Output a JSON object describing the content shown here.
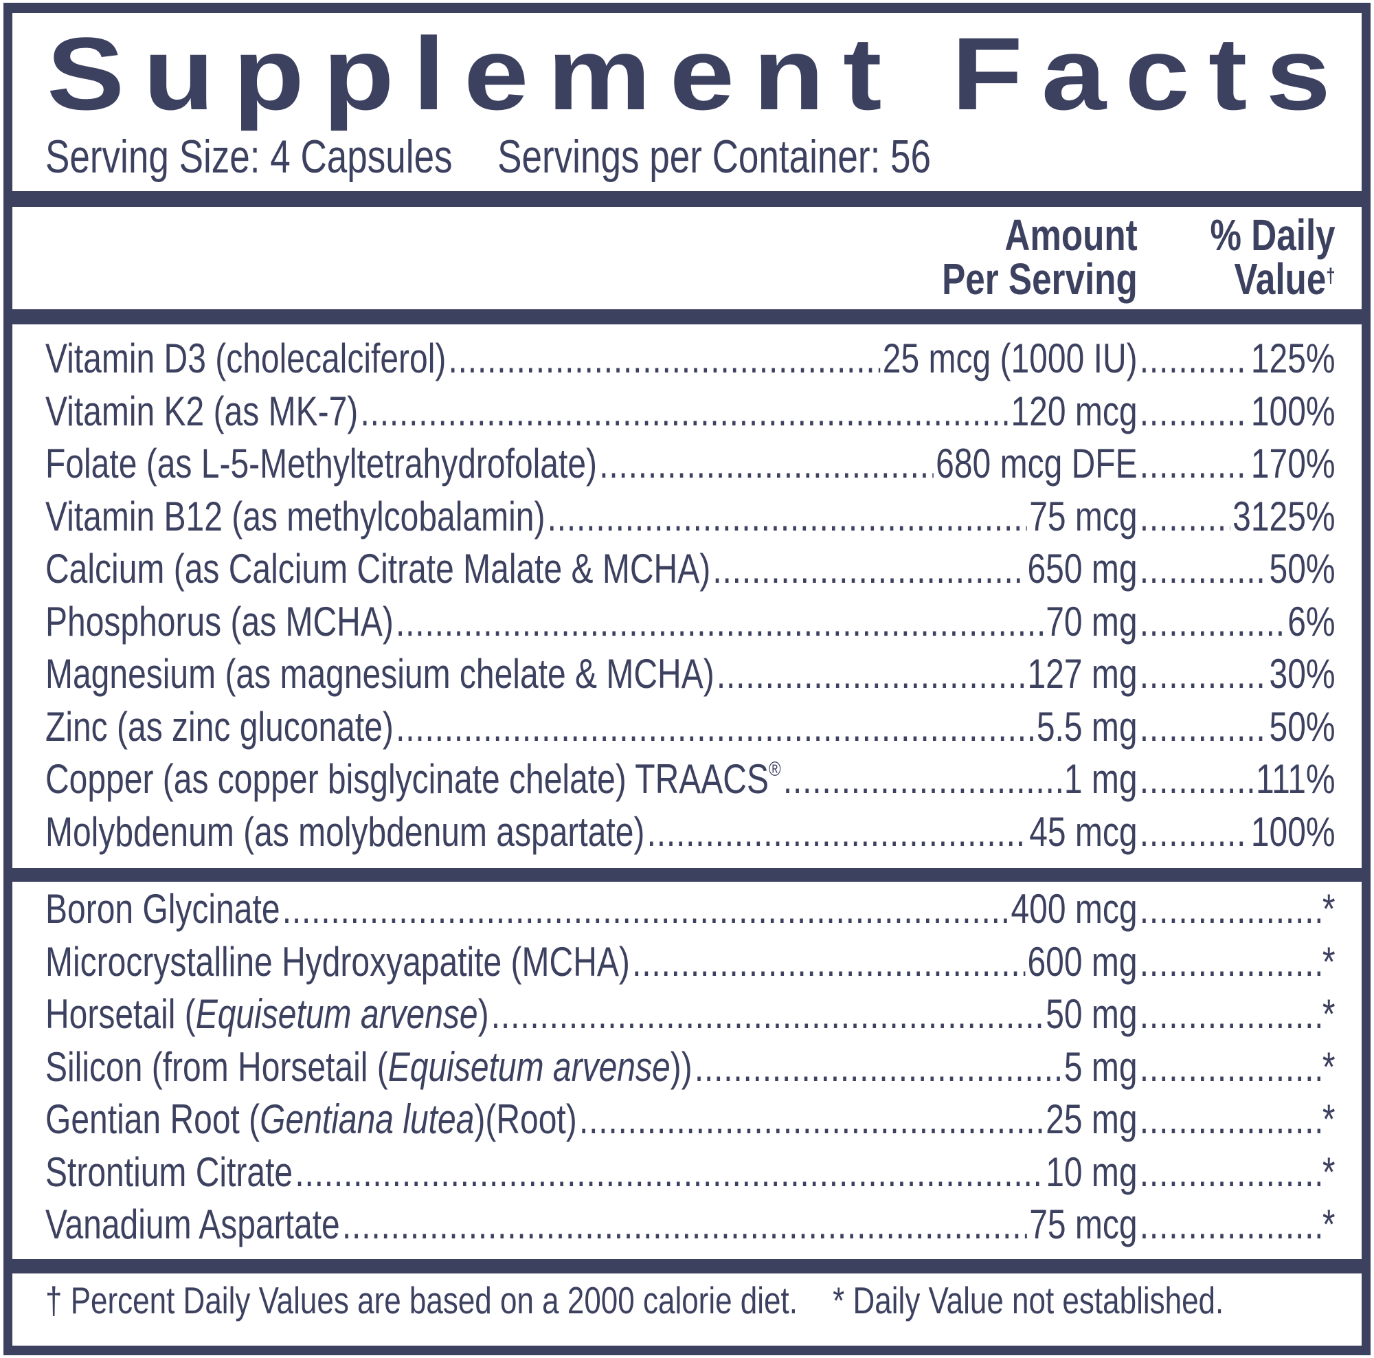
{
  "title": "Supplement Facts",
  "serving_size": "Serving Size: 4 Capsules",
  "servings_per_container": "Servings per Container: 56",
  "header": {
    "amount_line1": "Amount",
    "amount_line2": "Per Serving",
    "dv_line1": "% Daily",
    "dv_line2": "Value",
    "dv_mark": "†"
  },
  "nutrients": [
    {
      "parts": [
        {
          "text": "Vitamin D3 (cholecalciferol)"
        }
      ],
      "amount": "25 mcg (1000 IU)",
      "dv": "125%"
    },
    {
      "parts": [
        {
          "text": "Vitamin K2 (as MK-7) "
        }
      ],
      "amount": "120 mcg",
      "dv": "100%"
    },
    {
      "parts": [
        {
          "text": "Folate (as L-5-Methyltetrahydrofolate) "
        }
      ],
      "amount": "680 mcg DFE",
      "dv": "170%"
    },
    {
      "parts": [
        {
          "text": "Vitamin B12 (as methylcobalamin)"
        }
      ],
      "amount": "75 mcg",
      "dv": "3125%"
    },
    {
      "parts": [
        {
          "text": "Calcium (as Calcium Citrate Malate & MCHA)"
        }
      ],
      "amount": "650 mg",
      "dv": "50%"
    },
    {
      "parts": [
        {
          "text": "Phosphorus (as MCHA)"
        }
      ],
      "amount": "70 mg",
      "dv": "6%"
    },
    {
      "parts": [
        {
          "text": "Magnesium (as magnesium chelate & MCHA)"
        }
      ],
      "amount": "127 mg",
      "dv": "30%"
    },
    {
      "parts": [
        {
          "text": "Zinc (as zinc gluconate)"
        }
      ],
      "amount": "5.5 mg",
      "dv": "50%"
    },
    {
      "parts": [
        {
          "text": "Copper (as copper bisglycinate chelate) TRAACS"
        },
        {
          "text": "®",
          "sup": true
        }
      ],
      "amount": "1 mg",
      "dv": "111%"
    },
    {
      "parts": [
        {
          "text": "Molybdenum (as molybdenum aspartate) "
        }
      ],
      "amount": "45 mcg",
      "dv": "100%"
    }
  ],
  "other": [
    {
      "parts": [
        {
          "text": "Boron Glycinate"
        }
      ],
      "amount": "400 mcg",
      "dv": "*"
    },
    {
      "parts": [
        {
          "text": "Microcrystalline Hydroxyapatite (MCHA)"
        }
      ],
      "amount": "600 mg",
      "dv": "*"
    },
    {
      "parts": [
        {
          "text": "Horsetail ("
        },
        {
          "text": "Equisetum arvense",
          "italic": true
        },
        {
          "text": ") "
        }
      ],
      "amount": "50 mg",
      "dv": "*"
    },
    {
      "parts": [
        {
          "text": "Silicon (from Horsetail ("
        },
        {
          "text": "Equisetum arvense",
          "italic": true
        },
        {
          "text": ")) "
        }
      ],
      "amount": "5 mg",
      "dv": "*"
    },
    {
      "parts": [
        {
          "text": "Gentian Root ("
        },
        {
          "text": "Gentiana lutea",
          "italic": true
        },
        {
          "text": ")(Root)"
        }
      ],
      "amount": "25 mg",
      "dv": "*"
    },
    {
      "parts": [
        {
          "text": "Strontium Citrate"
        }
      ],
      "amount": "10 mg",
      "dv": "*"
    },
    {
      "parts": [
        {
          "text": "Vanadium Aspartate "
        }
      ],
      "amount": "75 mcg",
      "dv": "*"
    }
  ],
  "footnote_dv": "† Percent Daily Values are based on a 2000 calorie diet.",
  "footnote_na": "* Daily Value not established.",
  "colors": {
    "ink": "#3d4160",
    "background": "#ffffff"
  }
}
